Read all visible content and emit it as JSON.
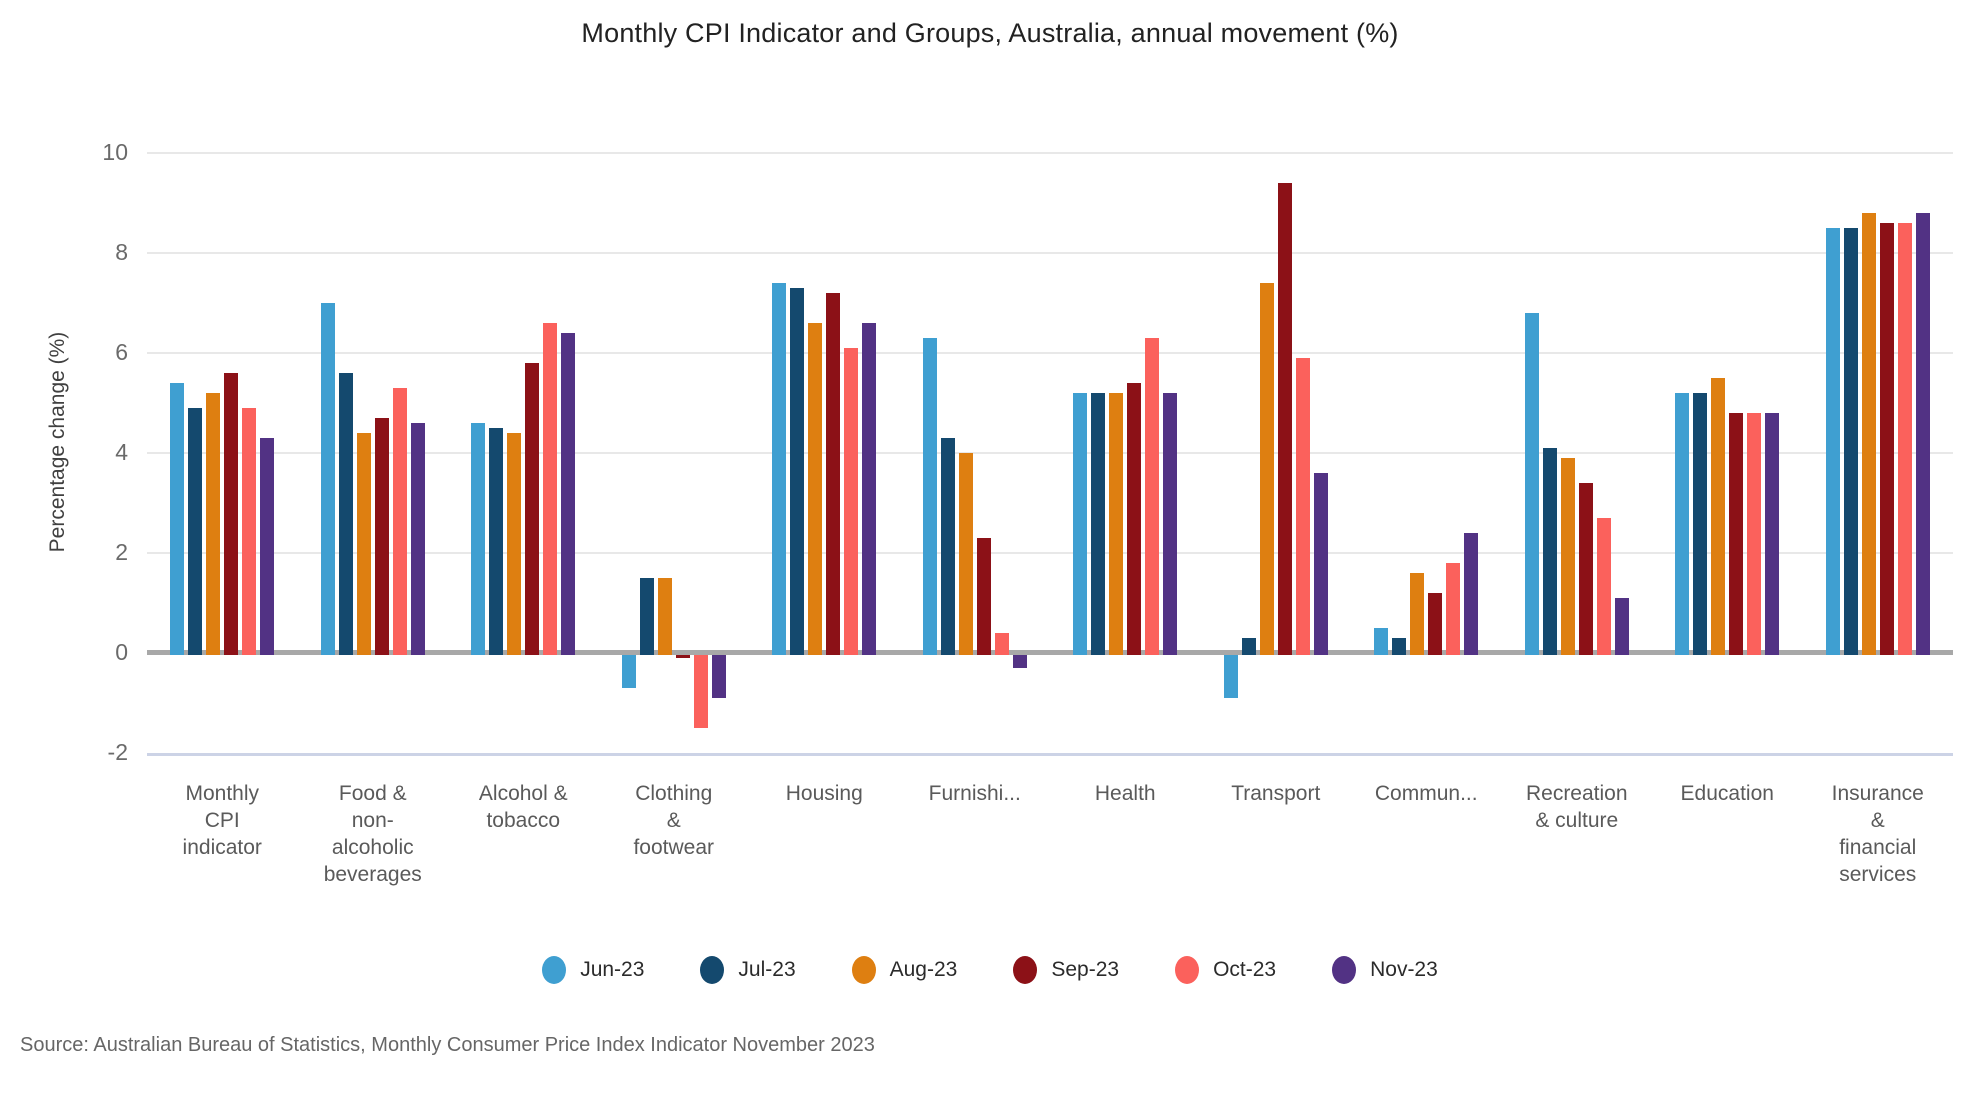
{
  "chart_data": {
    "type": "bar",
    "title": "Monthly CPI Indicator and Groups, Australia, annual movement (%)",
    "ylabel": "Percentage change (%)",
    "source_note": "Source: Australian Bureau of Statistics, Monthly Consumer Price Index Indicator November 2023",
    "y_ticks": [
      10,
      8,
      6,
      4,
      2,
      0,
      -2
    ],
    "ylim": [
      -2,
      10.7
    ],
    "grid": true,
    "legend_position": "bottom",
    "categories": [
      "Monthly CPI indicator",
      "Food & non-alcoholic beverages",
      "Alcohol & tobacco",
      "Clothing & footwear",
      "Housing",
      "Furnishi...",
      "Health",
      "Transport",
      "Commun...",
      "Recreation & culture",
      "Education",
      "Insurance & financial services"
    ],
    "category_label_lines": [
      [
        "Monthly",
        "CPI",
        "indicator"
      ],
      [
        "Food &",
        "non-",
        "alcoholic",
        "beverages"
      ],
      [
        "Alcohol &",
        "tobacco"
      ],
      [
        "Clothing",
        "&",
        "footwear"
      ],
      [
        "Housing"
      ],
      [
        "Furnishi..."
      ],
      [
        "Health"
      ],
      [
        "Transport"
      ],
      [
        "Commun..."
      ],
      [
        "Recreation",
        "& culture"
      ],
      [
        "Education"
      ],
      [
        "Insurance",
        "&",
        "financial",
        "services"
      ]
    ],
    "series": [
      {
        "name": "Jun-23",
        "color": "#3f9fd1",
        "values": [
          5.4,
          7.0,
          4.6,
          -0.7,
          7.4,
          6.3,
          5.2,
          -0.9,
          0.5,
          6.8,
          5.2,
          8.5
        ]
      },
      {
        "name": "Jul-23",
        "color": "#14496e",
        "values": [
          4.9,
          5.6,
          4.5,
          1.5,
          7.3,
          4.3,
          5.2,
          0.3,
          0.3,
          4.1,
          5.2,
          8.5
        ]
      },
      {
        "name": "Aug-23",
        "color": "#de7f11",
        "values": [
          5.2,
          4.4,
          4.4,
          1.5,
          6.6,
          4.0,
          5.2,
          7.4,
          1.6,
          3.9,
          5.5,
          8.8
        ]
      },
      {
        "name": "Sep-23",
        "color": "#8c1117",
        "values": [
          5.6,
          4.7,
          5.8,
          -0.1,
          7.2,
          2.3,
          5.4,
          9.4,
          1.2,
          3.4,
          4.8,
          8.6
        ]
      },
      {
        "name": "Oct-23",
        "color": "#fb615c",
        "values": [
          4.9,
          5.3,
          6.6,
          -1.5,
          6.1,
          0.4,
          6.3,
          5.9,
          1.8,
          2.7,
          4.8,
          8.6
        ]
      },
      {
        "name": "Nov-23",
        "color": "#523284",
        "values": [
          4.3,
          4.6,
          6.4,
          -0.9,
          6.6,
          -0.3,
          5.2,
          3.6,
          2.4,
          1.1,
          4.8,
          8.8
        ]
      }
    ]
  },
  "colors": {
    "gridline": "#e8e8e8",
    "zero_line": "#a8a8a8",
    "bottom_line": "#ccd3e6",
    "tick_text": "#6a6a6a",
    "category_text": "#5a5a5a",
    "background": "#ffffff"
  }
}
